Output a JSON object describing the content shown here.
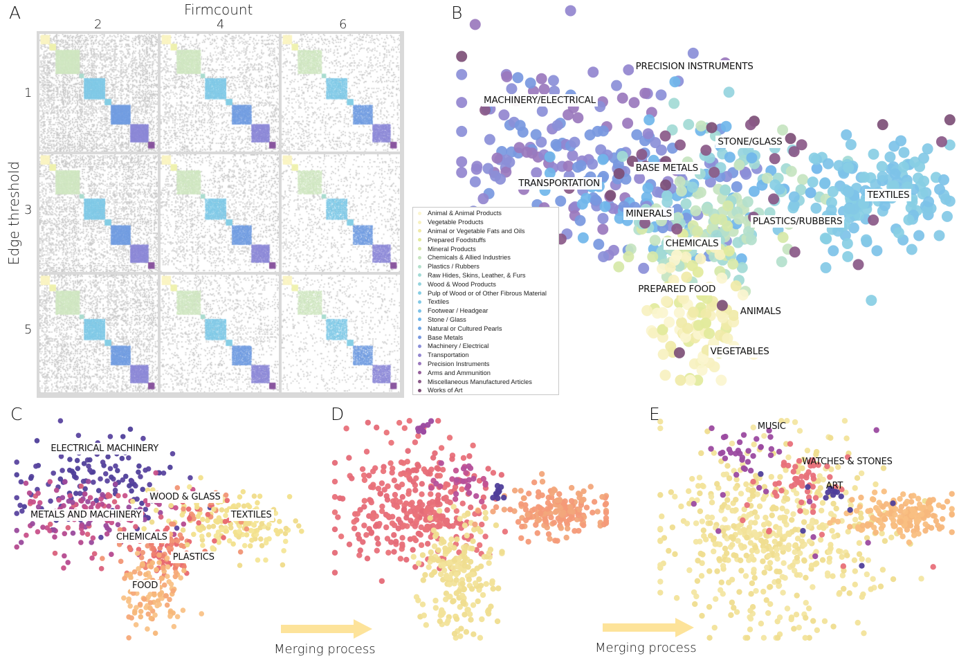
{
  "panels": {
    "A": {
      "letter": "A"
    },
    "B": {
      "letter": "B"
    },
    "C": {
      "letter": "C"
    },
    "D": {
      "letter": "D"
    },
    "E": {
      "letter": "E"
    }
  },
  "chart_data": [
    {
      "id": "A",
      "type": "heatmap",
      "title": "",
      "xlabel": "Firmcount",
      "ylabel": "Edge threshold",
      "col_ticks": [
        "2",
        "4",
        "6"
      ],
      "row_ticks": [
        "1",
        "3",
        "5"
      ],
      "description": "3x3 grid of product adjacency matrices, diagonal blocks colored by product section",
      "block_colors": [
        "#f9f3c2",
        "#eef0b0",
        "#cfe6c0",
        "#a9dccf",
        "#7ec8e6",
        "#6f9be0",
        "#8a86d6",
        "#8c5aa0"
      ],
      "block_sizes": [
        0.06,
        0.04,
        0.16,
        0.03,
        0.14,
        0.04,
        0.13,
        0.12,
        0.04
      ],
      "offdiag_gray": "#c8c8c8",
      "density": [
        [
          0.42,
          0.24,
          0.14
        ],
        [
          0.36,
          0.2,
          0.12
        ],
        [
          0.33,
          0.18,
          0.1
        ]
      ]
    },
    {
      "id": "B",
      "type": "scatter",
      "title": "",
      "legend_position": "left",
      "legend": [
        {
          "label": "Animal & Animal Products",
          "color": "#fbf5cf"
        },
        {
          "label": "Vegetable Products",
          "color": "#f7f1c0"
        },
        {
          "label": "Animal or Vegetable Fats and Oils",
          "color": "#f0eaa8"
        },
        {
          "label": "Prepared Foodstuffs",
          "color": "#e2ea9c"
        },
        {
          "label": "Mineral Products",
          "color": "#d6e8a8"
        },
        {
          "label": "Chemicals & Allied Industries",
          "color": "#c5e4c0"
        },
        {
          "label": "Plastics / Rubbers",
          "color": "#b3e0cc"
        },
        {
          "label": "Raw Hides, Skins, Leather, & Furs",
          "color": "#a2dad5"
        },
        {
          "label": "Wood & Wood Products",
          "color": "#95d4de"
        },
        {
          "label": "Pulp of Wood or of Other Fibrous Material",
          "color": "#88cee4"
        },
        {
          "label": "Textiles",
          "color": "#83c9e6"
        },
        {
          "label": "Footwear / Headgear",
          "color": "#7dc2e8"
        },
        {
          "label": "Stone / Glass",
          "color": "#70b6ea"
        },
        {
          "label": "Natural or Cultured Pearls",
          "color": "#6ea6e6"
        },
        {
          "label": "Base Metals",
          "color": "#7898df"
        },
        {
          "label": "Machinery / Electrical",
          "color": "#8b8fd8"
        },
        {
          "label": "Transportation",
          "color": "#9285cf"
        },
        {
          "label": "Precision Instruments",
          "color": "#9a78bd"
        },
        {
          "label": "Arms and Ammunition",
          "color": "#955f9b"
        },
        {
          "label": "Miscellaneous Manufactured Articles",
          "color": "#8a5988"
        },
        {
          "label": "Works of Art",
          "color": "#7d4f77"
        }
      ],
      "xlim": [
        0,
        100
      ],
      "ylim": [
        0,
        100
      ],
      "clusters": [
        {
          "name": "machinery",
          "cx": 22,
          "cy": 62,
          "sx": 13,
          "sy": 14,
          "n": 150,
          "colors": [
            "#8b8fd8",
            "#9285cf",
            "#9a78bd",
            "#7898df"
          ]
        },
        {
          "name": "metals",
          "cx": 38,
          "cy": 52,
          "sx": 10,
          "sy": 9,
          "n": 90,
          "colors": [
            "#7898df",
            "#70b6ea",
            "#8b8fd8"
          ]
        },
        {
          "name": "stone",
          "cx": 55,
          "cy": 55,
          "sx": 9,
          "sy": 9,
          "n": 90,
          "colors": [
            "#70b6ea",
            "#95d4de",
            "#a2dad5",
            "#c5e4c0"
          ]
        },
        {
          "name": "textiles",
          "cx": 85,
          "cy": 50,
          "sx": 9,
          "sy": 7,
          "n": 150,
          "colors": [
            "#83c9e6",
            "#88cee4",
            "#7dc2e8"
          ]
        },
        {
          "name": "chemicals",
          "cx": 48,
          "cy": 38,
          "sx": 7,
          "sy": 6,
          "n": 90,
          "colors": [
            "#c5e4c0",
            "#b3e0cc",
            "#a2dad5",
            "#d6e8a8"
          ]
        },
        {
          "name": "food",
          "cx": 48,
          "cy": 18,
          "sx": 5,
          "sy": 9,
          "n": 100,
          "colors": [
            "#e2ea9c",
            "#f7f1c0",
            "#fbf5cf",
            "#f0eaa8"
          ]
        },
        {
          "name": "art",
          "cx": 50,
          "cy": 55,
          "sx": 25,
          "sy": 18,
          "n": 35,
          "colors": [
            "#7d4f77",
            "#8a5988"
          ]
        }
      ],
      "labels": [
        {
          "text": "PRECISION INSTRUMENTS",
          "x": 35.5,
          "y": 84
        },
        {
          "text": "MACHINERY/ELECTRICAL",
          "x": 5,
          "y": 75
        },
        {
          "text": "STONE/GLASS",
          "x": 52,
          "y": 64
        },
        {
          "text": "BASE METALS",
          "x": 35.5,
          "y": 57
        },
        {
          "text": "TRANSPORTATION",
          "x": 12,
          "y": 53
        },
        {
          "text": "TEXTILES",
          "x": 82,
          "y": 50
        },
        {
          "text": "MINERALS",
          "x": 33.5,
          "y": 45
        },
        {
          "text": "PLASTICS/RUBBERS",
          "x": 59,
          "y": 43
        },
        {
          "text": "CHEMICALS",
          "x": 41.5,
          "y": 37
        },
        {
          "text": "PREPARED FOOD",
          "x": 36,
          "y": 25
        },
        {
          "text": "ANIMALS",
          "x": 56.5,
          "y": 19
        },
        {
          "text": "VEGETABLES",
          "x": 50.5,
          "y": 8.5
        }
      ]
    },
    {
      "id": "C",
      "type": "scatter",
      "xlim": [
        0,
        100
      ],
      "ylim": [
        0,
        100
      ],
      "clusters": [
        {
          "name": "electrical",
          "cx": 28,
          "cy": 72,
          "sx": 14,
          "sy": 10,
          "n": 130,
          "colors": [
            "#4f3f9a",
            "#5a449f"
          ]
        },
        {
          "name": "metals",
          "cx": 30,
          "cy": 55,
          "sx": 14,
          "sy": 8,
          "n": 150,
          "colors": [
            "#c8518a",
            "#b54a8f",
            "#d9607c",
            "#9a4a9c"
          ]
        },
        {
          "name": "chemicals",
          "cx": 52,
          "cy": 40,
          "sx": 7,
          "sy": 6,
          "n": 80,
          "colors": [
            "#ee7f6f",
            "#f19575",
            "#e8686f"
          ]
        },
        {
          "name": "food",
          "cx": 48,
          "cy": 22,
          "sx": 5,
          "sy": 9,
          "n": 110,
          "colors": [
            "#f7b779",
            "#f5a978",
            "#f9c287"
          ]
        },
        {
          "name": "textiles",
          "cx": 78,
          "cy": 52,
          "sx": 10,
          "sy": 7,
          "n": 150,
          "colors": [
            "#f2e08c",
            "#efdb8a",
            "#f4e698"
          ]
        },
        {
          "name": "wood",
          "cx": 62,
          "cy": 58,
          "sx": 8,
          "sy": 6,
          "n": 60,
          "colors": [
            "#f19575",
            "#e8686f",
            "#f2e08c"
          ]
        }
      ],
      "labels": [
        {
          "text": "ELECTRICAL MACHINERY",
          "x": 12,
          "y": 86
        },
        {
          "text": "WOOD & GLASS",
          "x": 46,
          "y": 64
        },
        {
          "text": "METALS AND MACHINERY",
          "x": 5,
          "y": 56
        },
        {
          "text": "TEXTILES",
          "x": 74,
          "y": 56
        },
        {
          "text": "CHEMICALS",
          "x": 34.5,
          "y": 46
        },
        {
          "text": "PLASTICS",
          "x": 54,
          "y": 37
        },
        {
          "text": "FOOD",
          "x": 40,
          "y": 24
        }
      ]
    },
    {
      "id": "D",
      "type": "scatter",
      "xlim": [
        0,
        100
      ],
      "ylim": [
        0,
        100
      ],
      "clusters": [
        {
          "name": "main",
          "cx": 30,
          "cy": 62,
          "sx": 13,
          "sy": 14,
          "n": 330,
          "colors": [
            "#e8707a",
            "#ea7379",
            "#e56a77"
          ]
        },
        {
          "name": "food",
          "cx": 45,
          "cy": 28,
          "sx": 7,
          "sy": 12,
          "n": 200,
          "colors": [
            "#f2e39a",
            "#efdd8f"
          ]
        },
        {
          "name": "textiles",
          "cx": 80,
          "cy": 58,
          "sx": 10,
          "sy": 6,
          "n": 180,
          "colors": [
            "#f49a78",
            "#f2a67b"
          ]
        },
        {
          "name": "music",
          "cx": 33,
          "cy": 95,
          "sx": 1.5,
          "sy": 1.5,
          "n": 8,
          "colors": [
            "#9b4aa0"
          ]
        },
        {
          "name": "precision",
          "cx": 48,
          "cy": 72,
          "sx": 5,
          "sy": 5,
          "n": 30,
          "colors": [
            "#c45290",
            "#b5509a"
          ]
        },
        {
          "name": "art",
          "cx": 60,
          "cy": 66,
          "sx": 2,
          "sy": 2,
          "n": 10,
          "colors": [
            "#4f3f9a"
          ]
        }
      ],
      "labels": []
    },
    {
      "id": "E",
      "type": "scatter",
      "xlim": [
        0,
        100
      ],
      "ylim": [
        0,
        100
      ],
      "clusters": [
        {
          "name": "main",
          "cx": 40,
          "cy": 50,
          "sx": 18,
          "sy": 20,
          "n": 520,
          "colors": [
            "#f2e39a",
            "#efdd8f",
            "#f3e6a2"
          ]
        },
        {
          "name": "textiles",
          "cx": 82,
          "cy": 57,
          "sx": 8,
          "sy": 5,
          "n": 170,
          "colors": [
            "#f9bf82",
            "#f7b77c"
          ]
        },
        {
          "name": "music",
          "cx": 27,
          "cy": 85,
          "sx": 6,
          "sy": 6,
          "n": 30,
          "colors": [
            "#9b4aa0"
          ]
        },
        {
          "name": "watches",
          "cx": 50,
          "cy": 72,
          "sx": 6,
          "sy": 6,
          "n": 50,
          "colors": [
            "#e8707a"
          ]
        },
        {
          "name": "art",
          "cx": 60,
          "cy": 67,
          "sx": 2,
          "sy": 1.5,
          "n": 7,
          "colors": [
            "#4f3f9a"
          ]
        },
        {
          "name": "scatter",
          "cx": 50,
          "cy": 55,
          "sx": 20,
          "sy": 15,
          "n": 25,
          "colors": [
            "#9b4aa0",
            "#4f3f9a",
            "#e8707a"
          ]
        }
      ],
      "labels": [
        {
          "text": "MUSIC",
          "x": 33,
          "y": 96
        },
        {
          "text": "WATCHES & STONES",
          "x": 48,
          "y": 80
        },
        {
          "text": "ART",
          "x": 56,
          "y": 69
        }
      ]
    }
  ],
  "arrows": [
    {
      "label": "Merging process",
      "color": "#fde39a"
    },
    {
      "label": "Merging process",
      "color": "#fde39a"
    }
  ]
}
